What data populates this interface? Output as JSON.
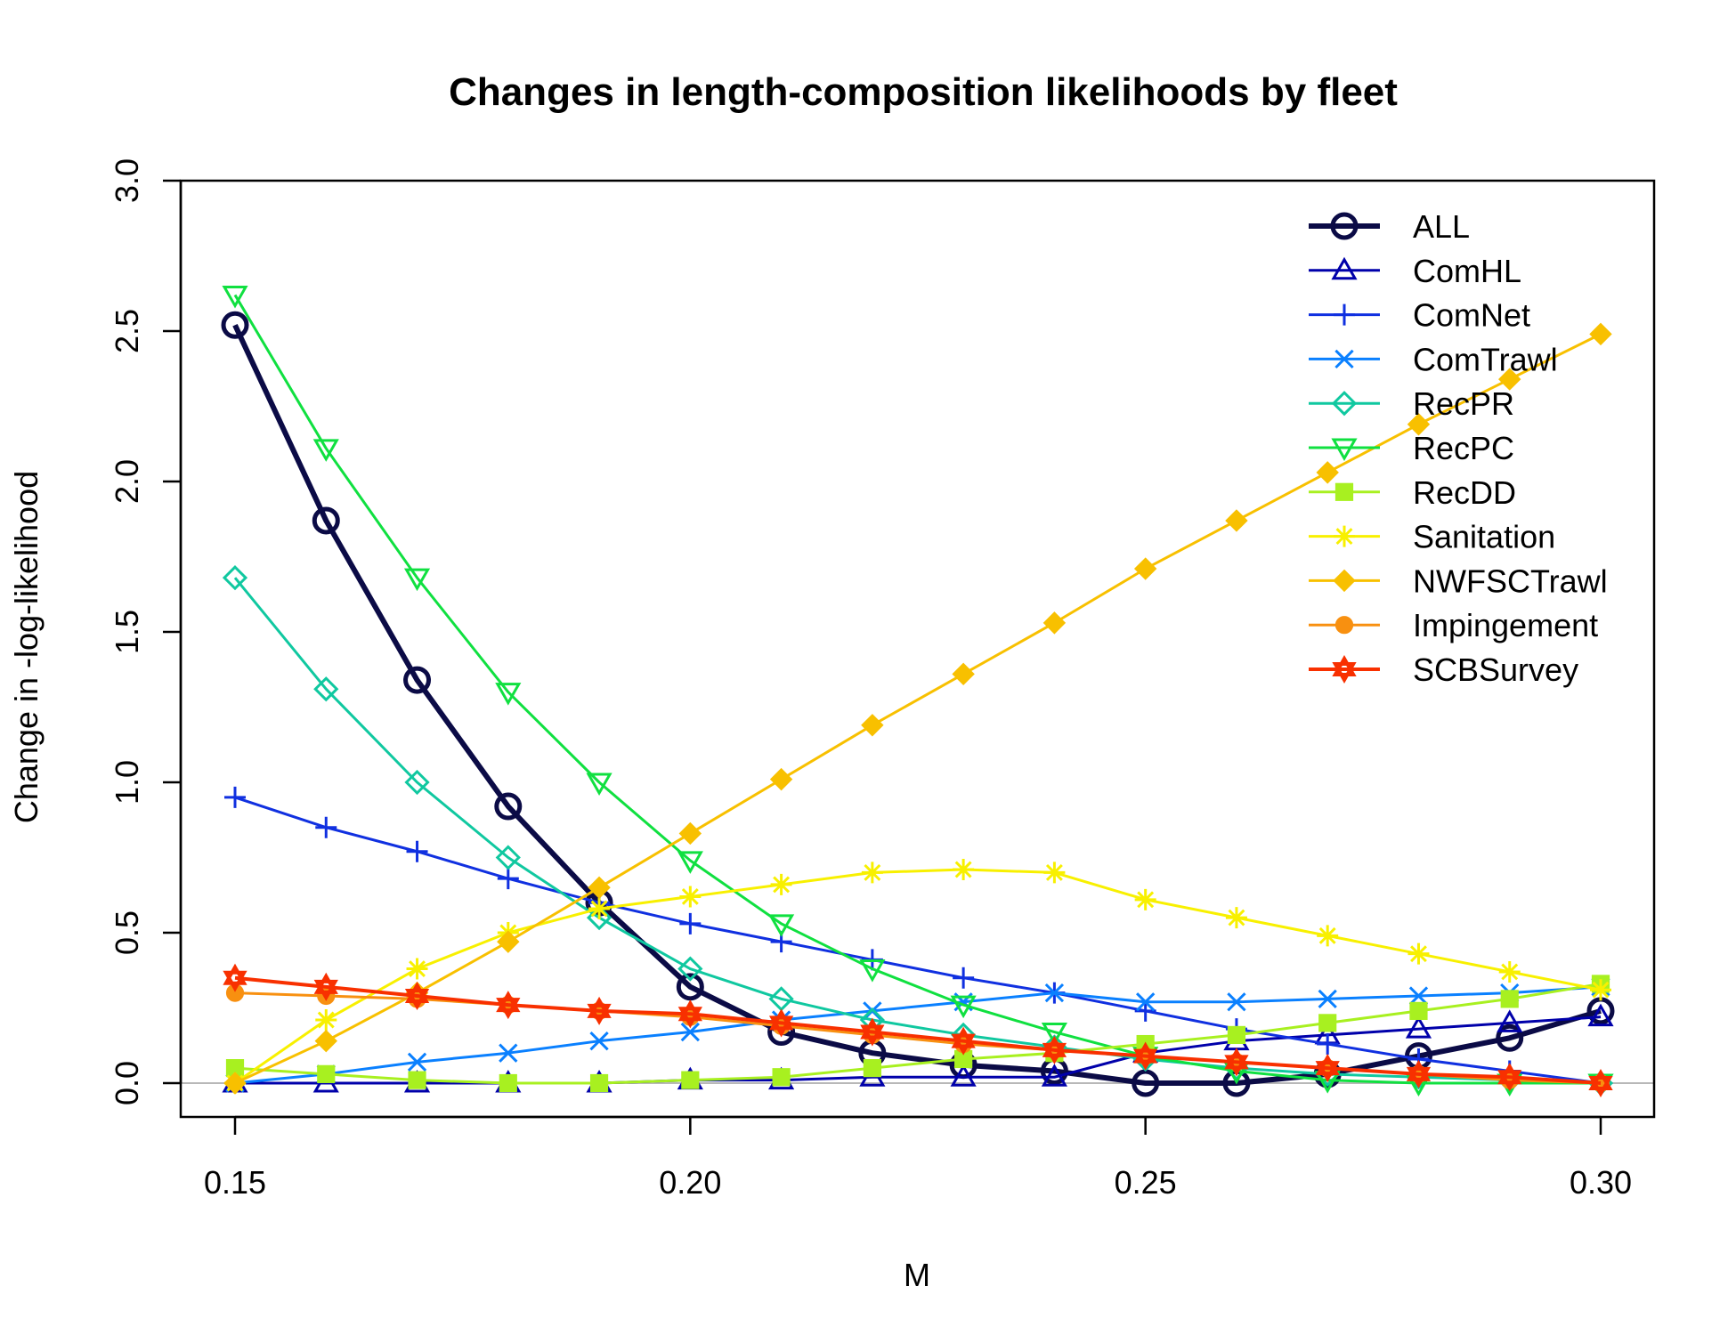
{
  "chart_data": {
    "type": "line",
    "title": "Changes in length-composition likelihoods by fleet",
    "xlabel": "M",
    "ylabel": "Change in -log-likelihood",
    "xlim": [
      0.15,
      0.3
    ],
    "ylim": [
      0.0,
      3.0
    ],
    "x_ticks": [
      "0.15",
      "0.20",
      "0.25",
      "0.30"
    ],
    "y_ticks": [
      "0.0",
      "0.5",
      "1.0",
      "1.5",
      "2.0",
      "2.5",
      "3.0"
    ],
    "legend_position": "top-right",
    "reference_line": 0,
    "x": [
      0.15,
      0.16,
      0.17,
      0.18,
      0.19,
      0.2,
      0.21,
      0.22,
      0.23,
      0.24,
      0.25,
      0.26,
      0.27,
      0.28,
      0.29,
      0.3
    ],
    "series": [
      {
        "name": "ALL",
        "color": "#0b0b46",
        "marker": "circle",
        "width": 6,
        "values": [
          2.52,
          1.87,
          1.34,
          0.92,
          0.6,
          0.32,
          0.17,
          0.1,
          0.06,
          0.04,
          0.0,
          0.0,
          0.03,
          0.09,
          0.15,
          0.24
        ]
      },
      {
        "name": "ComHL",
        "color": "#0000aa",
        "marker": "triangle",
        "width": 3,
        "values": [
          0.0,
          0.0,
          0.0,
          0.0,
          0.0,
          0.01,
          0.01,
          0.02,
          0.02,
          0.02,
          0.1,
          0.14,
          0.16,
          0.18,
          0.2,
          0.22
        ]
      },
      {
        "name": "ComNet",
        "color": "#1030e0",
        "marker": "plus",
        "width": 3,
        "values": [
          0.95,
          0.85,
          0.77,
          0.68,
          0.6,
          0.53,
          0.47,
          0.41,
          0.35,
          0.3,
          0.24,
          0.18,
          0.13,
          0.08,
          0.04,
          0.0
        ]
      },
      {
        "name": "ComTrawl",
        "color": "#0a80ff",
        "marker": "cross",
        "width": 3,
        "values": [
          0.0,
          0.03,
          0.07,
          0.1,
          0.14,
          0.17,
          0.21,
          0.24,
          0.27,
          0.3,
          0.27,
          0.27,
          0.28,
          0.29,
          0.3,
          0.32
        ]
      },
      {
        "name": "RecPR",
        "color": "#10c8a0",
        "marker": "diamond",
        "width": 3,
        "values": [
          1.68,
          1.31,
          1.0,
          0.75,
          0.55,
          0.38,
          0.28,
          0.21,
          0.16,
          0.12,
          0.08,
          0.05,
          0.03,
          0.02,
          0.01,
          0.0
        ]
      },
      {
        "name": "RecPC",
        "color": "#10e040",
        "marker": "triangle-down",
        "width": 3,
        "values": [
          2.62,
          2.11,
          1.68,
          1.3,
          1.0,
          0.74,
          0.53,
          0.38,
          0.26,
          0.17,
          0.09,
          0.04,
          0.01,
          0.0,
          0.0,
          0.0
        ]
      },
      {
        "name": "RecDD",
        "color": "#a8f020",
        "marker": "square",
        "width": 3,
        "values": [
          0.05,
          0.03,
          0.01,
          0.0,
          0.0,
          0.01,
          0.02,
          0.05,
          0.08,
          0.1,
          0.13,
          0.16,
          0.2,
          0.24,
          0.28,
          0.33
        ]
      },
      {
        "name": "Sanitation",
        "color": "#f8f000",
        "marker": "asterisk",
        "width": 3,
        "values": [
          0.0,
          0.21,
          0.38,
          0.5,
          0.58,
          0.62,
          0.66,
          0.7,
          0.71,
          0.7,
          0.61,
          0.55,
          0.49,
          0.43,
          0.37,
          0.31
        ]
      },
      {
        "name": "NWFSCTrawl",
        "color": "#f8c000",
        "marker": "diamond-filled",
        "width": 3,
        "values": [
          0.0,
          0.14,
          0.3,
          0.47,
          0.65,
          0.83,
          1.01,
          1.19,
          1.36,
          1.53,
          1.71,
          1.87,
          2.03,
          2.19,
          2.34,
          2.49
        ]
      },
      {
        "name": "Impingement",
        "color": "#f89010",
        "marker": "dot",
        "width": 3,
        "values": [
          0.3,
          0.29,
          0.28,
          0.26,
          0.24,
          0.22,
          0.19,
          0.16,
          0.13,
          0.11,
          0.09,
          0.07,
          0.05,
          0.03,
          0.01,
          0.0
        ]
      },
      {
        "name": "SCBSurvey",
        "color": "#f83000",
        "marker": "star",
        "width": 4,
        "values": [
          0.35,
          0.32,
          0.29,
          0.26,
          0.24,
          0.23,
          0.2,
          0.17,
          0.14,
          0.11,
          0.09,
          0.07,
          0.05,
          0.03,
          0.02,
          0.0
        ]
      }
    ]
  }
}
